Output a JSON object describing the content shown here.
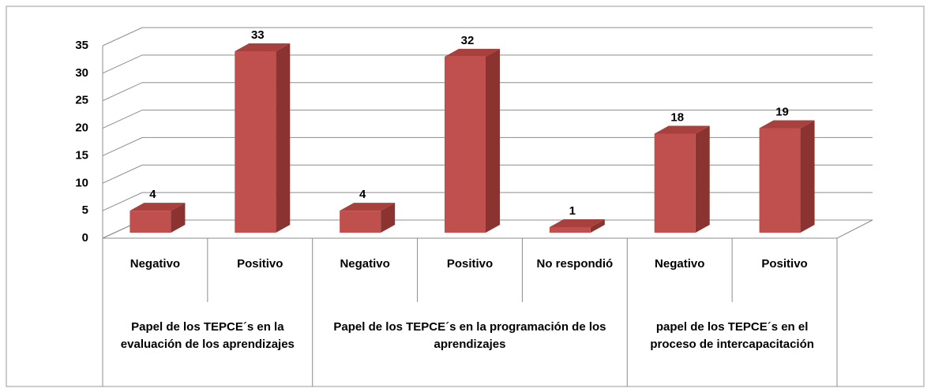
{
  "chart_data": {
    "type": "bar",
    "color": "#c0504d",
    "groups": [
      {
        "name": "Papel de los TEPCE´s en la evaluación de los aprendizajes",
        "categories": [
          "Negativo",
          "Positivo"
        ],
        "values": [
          4,
          33
        ]
      },
      {
        "name": "Papel de los TEPCE´s  en la programación de los aprendizajes",
        "categories": [
          "Negativo",
          "Positivo",
          "No respondió"
        ],
        "values": [
          4,
          32,
          1
        ]
      },
      {
        "name": "papel de los TEPCE´s en el proceso de intercapacitación",
        "categories": [
          "Negativo",
          "Positivo"
        ],
        "values": [
          18,
          19
        ]
      }
    ],
    "ylim": [
      0,
      35
    ],
    "yticks": [
      0,
      5,
      10,
      15,
      20,
      25,
      30,
      35
    ],
    "grid": true
  }
}
